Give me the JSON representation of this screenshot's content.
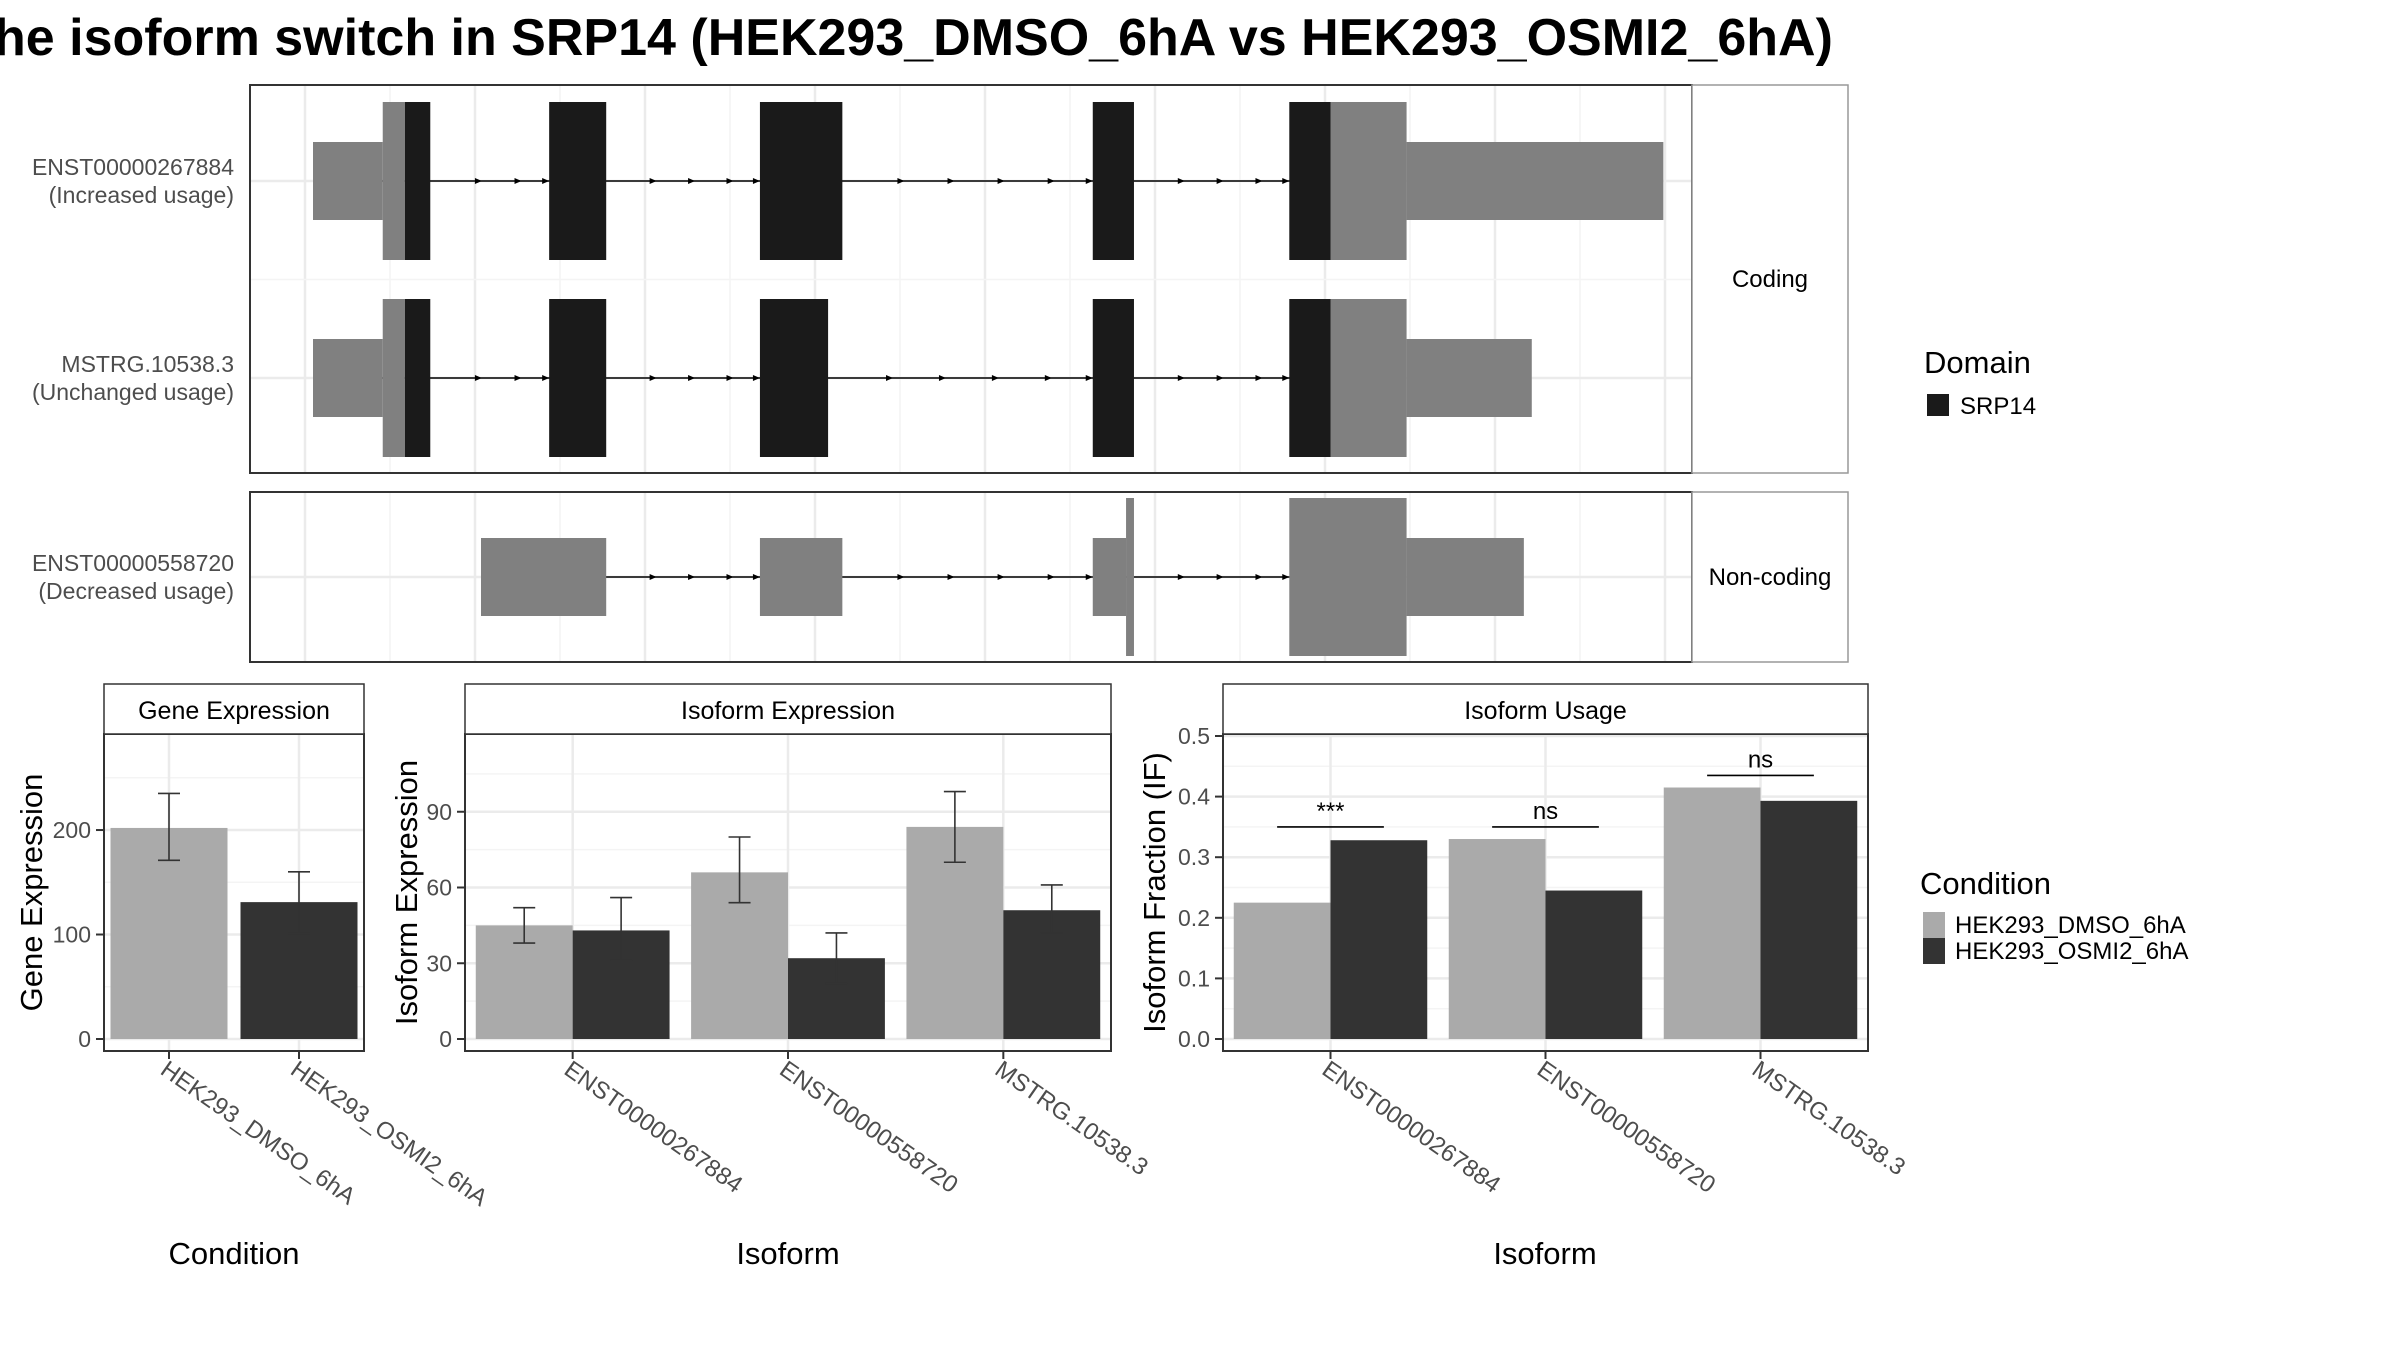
{
  "title": "he isoform switch in SRP14 (HEK293_DMSO_6hA vs HEK293_OSMI2_6hA)",
  "colors": {
    "domain": "#1a1a1a",
    "utr": "#808080",
    "intron": "#000000",
    "cond1": "#aaaaaa",
    "cond2": "#333333",
    "grid": "#ebebeb",
    "panel_border": "#333333",
    "strip_border": "#999999"
  },
  "legends": {
    "domain": {
      "title": "Domain",
      "items": [
        {
          "label": "SRP14",
          "color": "#1a1a1a"
        }
      ]
    },
    "condition": {
      "title": "Condition",
      "items": [
        {
          "label": "HEK293_DMSO_6hA",
          "color": "#aaaaaa"
        },
        {
          "label": "HEK293_OSMI2_6hA",
          "color": "#333333"
        }
      ]
    }
  },
  "chart_data": [
    {
      "type": "gene-structure",
      "groups": [
        {
          "strip": "Coding",
          "isoforms": [
            {
              "label": [
                "ENST00000267884",
                "(Increased usage)"
              ],
              "intron_span": [
                246,
                821
              ],
              "exons": [
                {
                  "start": 203,
                  "end": 247,
                  "kind": "utr"
                },
                {
                  "start": 247,
                  "end": 261,
                  "kind": "cds"
                },
                {
                  "start": 261,
                  "end": 277,
                  "kind": "domain"
                },
                {
                  "start": 352,
                  "end": 388,
                  "kind": "domain"
                },
                {
                  "start": 485,
                  "end": 537,
                  "kind": "domain"
                },
                {
                  "start": 695,
                  "end": 721,
                  "kind": "domain"
                },
                {
                  "start": 819,
                  "end": 845,
                  "kind": "domain"
                },
                {
                  "start": 845,
                  "end": 893,
                  "kind": "cds"
                },
                {
                  "start": 893,
                  "end": 1055,
                  "kind": "utr"
                }
              ]
            },
            {
              "label": [
                "MSTRG.10538.3",
                "(Unchanged usage)"
              ],
              "intron_span": [
                246,
                821
              ],
              "exons": [
                {
                  "start": 203,
                  "end": 247,
                  "kind": "utr"
                },
                {
                  "start": 247,
                  "end": 261,
                  "kind": "cds"
                },
                {
                  "start": 261,
                  "end": 277,
                  "kind": "domain"
                },
                {
                  "start": 352,
                  "end": 388,
                  "kind": "domain"
                },
                {
                  "start": 485,
                  "end": 528,
                  "kind": "domain"
                },
                {
                  "start": 695,
                  "end": 721,
                  "kind": "domain"
                },
                {
                  "start": 819,
                  "end": 845,
                  "kind": "domain"
                },
                {
                  "start": 845,
                  "end": 893,
                  "kind": "cds"
                },
                {
                  "start": 893,
                  "end": 972,
                  "kind": "utr"
                }
              ]
            }
          ]
        },
        {
          "strip": "Non-coding",
          "isoforms": [
            {
              "label": [
                "ENST00000558720",
                "(Decreased usage)"
              ],
              "intron_span": [
                309,
                821
              ],
              "exons": [
                {
                  "start": 309,
                  "end": 388,
                  "kind": "utr"
                },
                {
                  "start": 485,
                  "end": 537,
                  "kind": "utr"
                },
                {
                  "start": 695,
                  "end": 716,
                  "kind": "utr"
                },
                {
                  "start": 716,
                  "end": 721,
                  "kind": "cds"
                },
                {
                  "start": 819,
                  "end": 893,
                  "kind": "cds"
                },
                {
                  "start": 893,
                  "end": 967,
                  "kind": "utr"
                }
              ]
            }
          ]
        }
      ]
    },
    {
      "type": "bar",
      "title": "Gene Expression",
      "xlabel": "Condition",
      "ylabel": "Gene Expression",
      "categories": [
        "HEK293_DMSO_6hA",
        "HEK293_OSMI2_6hA"
      ],
      "ylim": [
        0,
        290
      ],
      "yticks": [
        0,
        100,
        200
      ],
      "series": [
        {
          "values": [
            202,
            131
          ],
          "errors": [
            [
              171,
              235
            ],
            [
              101,
              160
            ]
          ]
        }
      ]
    },
    {
      "type": "bar",
      "title": "Isoform Expression",
      "xlabel": "Isoform",
      "ylabel": "Isoform Expression",
      "categories": [
        "ENST00000267884",
        "ENST00000558720",
        "MSTRG.10538.3"
      ],
      "ylim": [
        0,
        120
      ],
      "yticks": [
        0,
        30,
        60,
        90
      ],
      "series": [
        {
          "name": "HEK293_DMSO_6hA",
          "values": [
            45,
            66,
            84
          ],
          "errors": [
            [
              38,
              52
            ],
            [
              54,
              80
            ],
            [
              70,
              98
            ]
          ]
        },
        {
          "name": "HEK293_OSMI2_6hA",
          "values": [
            43,
            32,
            51
          ],
          "errors": [
            [
              31,
              56
            ],
            [
              22,
              42
            ],
            [
              42,
              61
            ]
          ]
        }
      ]
    },
    {
      "type": "bar",
      "title": "Isoform Usage",
      "xlabel": "Isoform",
      "ylabel": "Isoform Fraction (IF)",
      "categories": [
        "ENST00000267884",
        "ENST00000558720",
        "MSTRG.10538.3"
      ],
      "ylim": [
        0,
        0.5
      ],
      "yticks": [
        0.0,
        0.1,
        0.2,
        0.3,
        0.4,
        0.5
      ],
      "ytick_labels": [
        "0.0",
        "0.1",
        "0.2",
        "0.3",
        "0.4",
        "0.5"
      ],
      "series": [
        {
          "name": "HEK293_DMSO_6hA",
          "values": [
            0.225,
            0.33,
            0.415
          ]
        },
        {
          "name": "HEK293_OSMI2_6hA",
          "values": [
            0.328,
            0.245,
            0.393
          ]
        }
      ],
      "significance": [
        {
          "category": "ENST00000267884",
          "label": "***",
          "y": 0.35
        },
        {
          "category": "ENST00000558720",
          "label": "ns",
          "y": 0.35
        },
        {
          "category": "MSTRG.10538.3",
          "label": "ns",
          "y": 0.435
        }
      ]
    }
  ]
}
